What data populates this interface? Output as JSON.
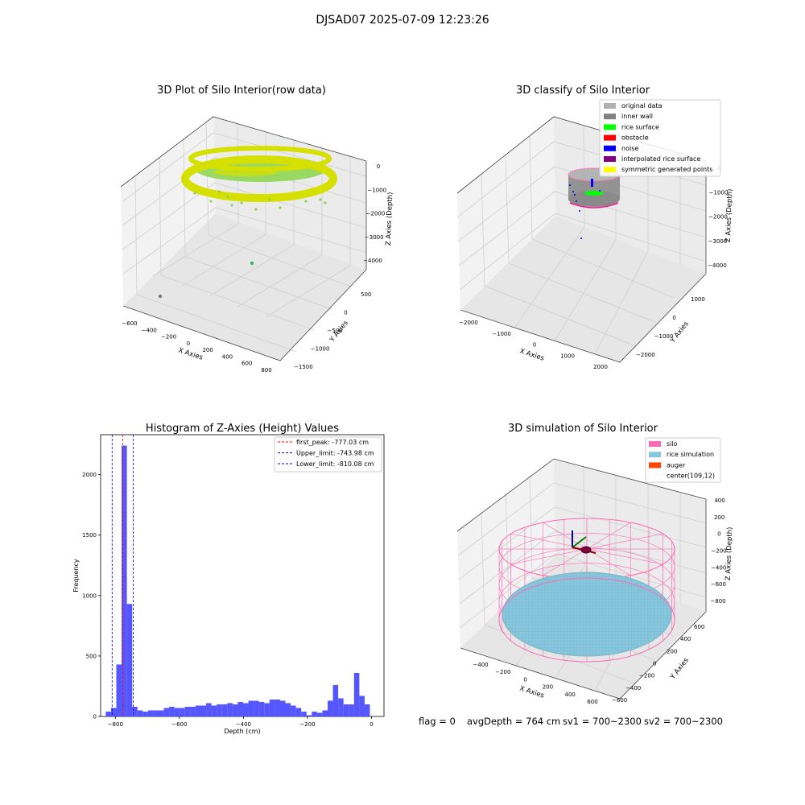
{
  "figure": {
    "suptitle": "DJSAD07 2025-07-09 12:23:26",
    "footer": {
      "flag": "flag = 0",
      "avg_depth": "avgDepth = 764 cm",
      "sv1": "sv1 = 700~2300",
      "sv2": "sv2 = 700~2300"
    }
  },
  "colors": {
    "hist_bar": "#4d4dff",
    "first_peak": "#ff0000",
    "limit_line": "#0000cc",
    "raw_yellow": "#d6e000",
    "raw_green": "#8bd64a",
    "inner_wall": "#808080",
    "rice_surface": "#00ff00",
    "noise": "#0000ff",
    "interpolated": "#800080",
    "silo": "#ff69b4",
    "rice_sim": "#87c7dd",
    "auger": "#ff4500",
    "pane_left": "#f2f2f2",
    "pane_right": "#ebebeb",
    "pane_floor": "#e6e6e6"
  },
  "chart_data": [
    {
      "type": "scatter",
      "title": "3D Plot of Silo Interior(row data)",
      "xlabel": "X Axies",
      "ylabel": "Y Axies",
      "zlabel": "Z Axies (Depth)",
      "x_ticks": [
        "−600",
        "−400",
        "−200",
        "0",
        "200",
        "400",
        "600",
        "800"
      ],
      "y_ticks": [
        "−1500",
        "−1000",
        "−500",
        "0",
        "500"
      ],
      "z_ticks": [
        "0",
        "−1000",
        "−2000",
        "−3000",
        "−4000"
      ],
      "grid": true
    },
    {
      "type": "scatter",
      "title": "3D classify of Silo Interior",
      "xlabel": "X Axies",
      "ylabel": "Y Axies",
      "zlabel": "Z Axies (Depth)",
      "x_ticks": [
        "−2000",
        "−1000",
        "0",
        "1000",
        "2000"
      ],
      "y_ticks": [
        "−2000",
        "−1000",
        "0",
        "1000"
      ],
      "z_ticks": [
        "0",
        "−1000",
        "−2000",
        "−3000",
        "−4000"
      ],
      "legend": [
        "original data",
        "inner wall",
        "rice surface",
        "obstacle",
        "noise",
        "interpolated rice surface",
        "symmetric generated points"
      ],
      "legend_colors": [
        "#b0b0b0",
        "#808080",
        "#00ff00",
        "#ff0000",
        "#0000ff",
        "#800080",
        "#ffff00"
      ],
      "legend_position": "top-right"
    },
    {
      "type": "bar",
      "title": "Histogram of Z-Axies (Height) Values",
      "xlabel": "Depth (cm)",
      "ylabel": "Frequency",
      "xlim": [
        -846,
        39
      ],
      "ylim": [
        0,
        2330
      ],
      "x_ticks": [
        -800,
        -600,
        -400,
        -200,
        0
      ],
      "y_ticks": [
        0,
        500,
        1000,
        1500,
        2000
      ],
      "bin_start": -830,
      "bin_width": 16.5,
      "values": [
        40,
        70,
        430,
        2240,
        930,
        80,
        50,
        40,
        50,
        50,
        50,
        70,
        80,
        70,
        70,
        80,
        80,
        90,
        90,
        110,
        90,
        100,
        100,
        110,
        100,
        120,
        110,
        130,
        130,
        120,
        110,
        140,
        140,
        130,
        110,
        90,
        70,
        40,
        10,
        40,
        30,
        50,
        130,
        260,
        150,
        100,
        100,
        360,
        170,
        100
      ],
      "lines": [
        {
          "label": "first_peak: -777.03 cm",
          "x": -777.03,
          "color": "#ff0000"
        },
        {
          "label": "Upper_limit: -743.98 cm",
          "x": -743.98,
          "color": "#0000cc"
        },
        {
          "label": "Lower_limit: -810.08 cm",
          "x": -810.08,
          "color": "#0000cc"
        }
      ],
      "legend_position": "top-right"
    },
    {
      "type": "scatter",
      "title": "3D simulation of Silo Interior",
      "xlabel": "X Axies",
      "ylabel": "Y Axies",
      "zlabel": "Z Axies (Depth)",
      "x_ticks": [
        "−400",
        "−200",
        "0",
        "200",
        "400",
        "600"
      ],
      "y_ticks": [
        "−600",
        "−400",
        "−200",
        "0",
        "200",
        "400",
        "600"
      ],
      "z_ticks": [
        "400",
        "200",
        "0",
        "−200",
        "−400",
        "−600",
        "−800"
      ],
      "legend": [
        "silo",
        "rice simulation",
        "auger",
        "center(109,12)"
      ],
      "legend_colors": [
        "#ff69b4",
        "#87c7dd",
        "#ff4500",
        "#ffffff"
      ],
      "legend_position": "top-right"
    }
  ]
}
